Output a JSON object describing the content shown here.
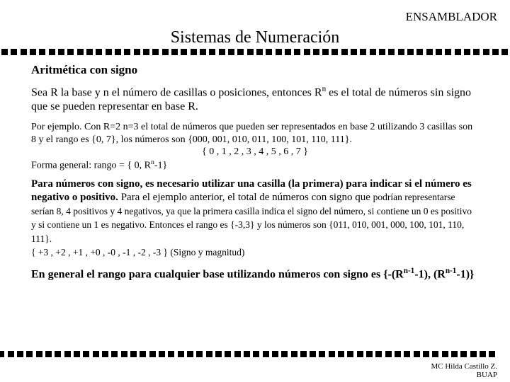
{
  "header": "ENSAMBLADOR",
  "title": "Sistemas de Numeración",
  "subheading": "Aritmética con signo",
  "para1_a": "Sea R la base y n el número de casillas o posiciones, entonces R",
  "para1_sup": "n",
  "para1_b": " es el total de números sin signo que se pueden representar en base R.",
  "para2": "Por ejemplo. Con R=2 n=3 el total de números que pueden ser representados en base 2 utilizando 3 casillas son 8 y el rango es {0, 7}, los números son {000, 001, 010, 011, 100, 101, 110, 111}.",
  "para2_center": "{ 0  ,   1  ,   2  ,   3  ,   4  ,   5  ,   6  ,   7 }",
  "para2_form_a": "Forma general: rango = { 0, R",
  "para2_form_sup": "n",
  "para2_form_b": "-1}",
  "para3_bold": "Para números con signo, es necesario utilizar una casilla (la primera) para indicar si el número es negativo o positivo.",
  "para3_norm": " Para el ejemplo anterior, el total de números con signo que ",
  "para3_sm": "podrían representarse serían 8, 4 positivos y 4 negativos, ya que la primera casilla indica el signo del número, si contiene un 0 es positivo y si contiene un 1 es negativo. Entonces el rango es {-3,3} y los números son {011, 010, 001, 000, 100, 101, 110, 111}.",
  "para3_sm2": "{ +3 , +2 , +1 , +0 ,  -0 , -1 ,  -2 , -3 }    (Signo y magnitud)",
  "para4_a": "En general el rango para cualquier base utilizando números con signo es {-(R",
  "para4_s1": "n-1",
  "para4_b": "-1), (R",
  "para4_s2": "n-1",
  "para4_c": "-1)}",
  "footer1": "MC Hilda Castillo Z.",
  "footer2": "BUAP",
  "square_count": 54,
  "square_color": "#000000",
  "bg": "#ffffff"
}
